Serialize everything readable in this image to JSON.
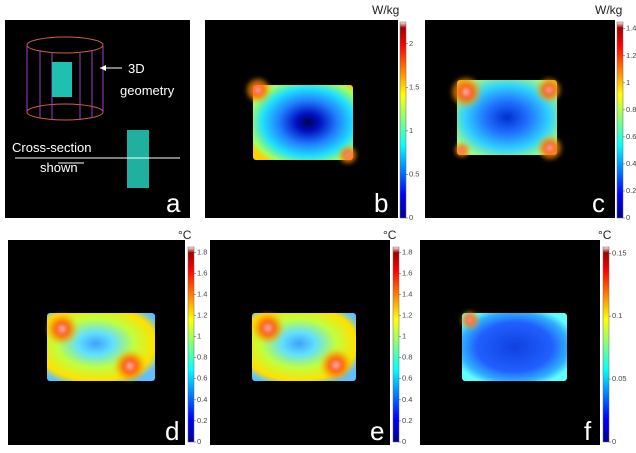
{
  "panel_a": {
    "label": "a",
    "geometry_label": [
      "3D",
      "geometry"
    ],
    "cross_section_label": [
      "Cross-section",
      "shown"
    ]
  },
  "panels": [
    {
      "label": "b",
      "unit": "W/kg",
      "colorbar": {
        "lim": [
          0,
          2.25
        ],
        "ticks": [
          0,
          0.5,
          1,
          1.5,
          2
        ]
      }
    },
    {
      "label": "c",
      "unit": "W/kg",
      "colorbar": {
        "lim": [
          0,
          1.45
        ],
        "ticks": [
          0,
          0.2,
          0.4,
          0.6,
          0.8,
          1,
          1.2,
          1.4
        ]
      }
    },
    {
      "label": "d",
      "unit": "°C",
      "colorbar": {
        "lim": [
          0,
          1.85
        ],
        "ticks": [
          0,
          0.2,
          0.4,
          0.6,
          0.8,
          1,
          1.2,
          1.4,
          1.6,
          1.8
        ]
      }
    },
    {
      "label": "e",
      "unit": "°C",
      "colorbar": {
        "lim": [
          0,
          1.85
        ],
        "ticks": [
          0,
          0.2,
          0.4,
          0.6,
          0.8,
          1,
          1.2,
          1.4,
          1.6,
          1.8
        ]
      }
    },
    {
      "label": "f",
      "unit": "°C",
      "colorbar": {
        "lim": [
          0,
          0.155
        ],
        "ticks": [
          0,
          0.05,
          0.1,
          0.15
        ]
      }
    }
  ]
}
